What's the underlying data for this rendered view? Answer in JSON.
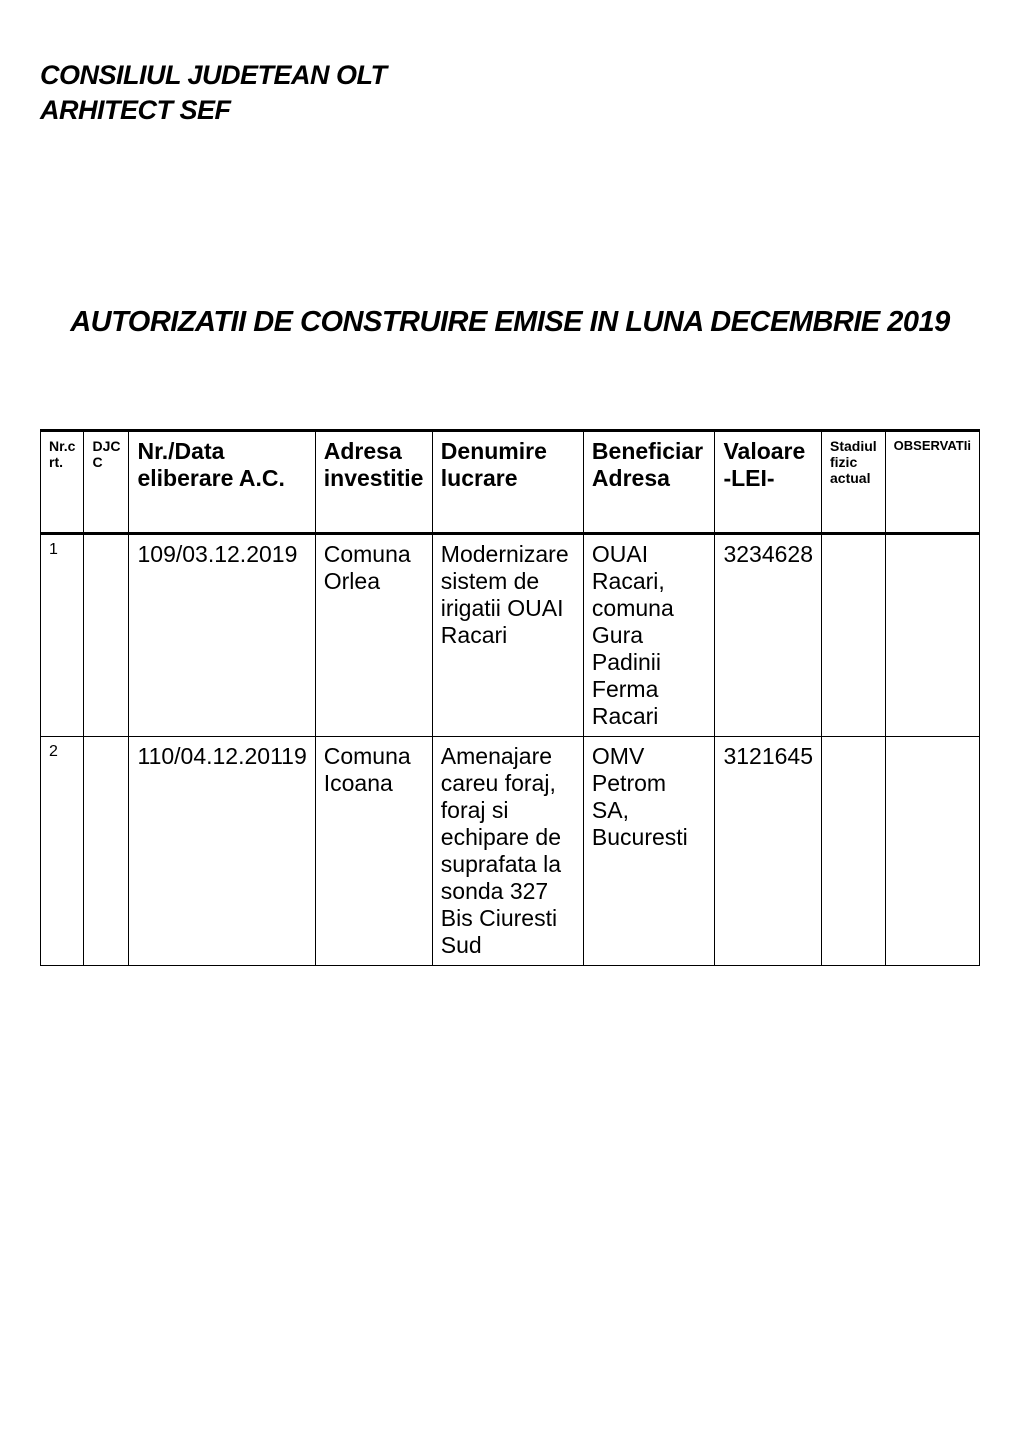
{
  "header": {
    "line1": "CONSILIUL JUDETEAN OLT",
    "line2": "ARHITECT SEF"
  },
  "title": "AUTORIZATII DE CONSTRUIRE EMISE IN LUNA DECEMBRIE 2019",
  "table": {
    "columns": {
      "nrc": "Nr.c rt.",
      "djc": "DJC C",
      "nrdata": "Nr./Data eliberare A.C.",
      "adresa": "Adresa investitie",
      "denumire": "Denumire lucrare",
      "beneficiar": "Beneficiar Adresa",
      "valoare": "Valoare -LEI-",
      "stadiul": "Stadiul fizic actual",
      "observatii": "OBSERVATIi"
    },
    "rows": [
      {
        "nrc": "1",
        "djc": "",
        "nrdata": "109/03.12.2019",
        "adresa": "Comuna Orlea",
        "denumire": "Modernizare sistem de irigatii OUAI Racari",
        "beneficiar": "OUAI Racari, comuna Gura Padinii Ferma Racari",
        "valoare": "3234628",
        "stadiul": "",
        "observatii": ""
      },
      {
        "nrc": "2",
        "djc": "",
        "nrdata": "110/04.12.20119",
        "adresa": "Comuna Icoana",
        "denumire": "Amenajare careu foraj, foraj si echipare de suprafata la sonda 327 Bis Ciuresti Sud",
        "beneficiar": "OMV Petrom SA, Bucuresti",
        "valoare": "3121645",
        "stadiul": "",
        "observatii": ""
      }
    ]
  }
}
